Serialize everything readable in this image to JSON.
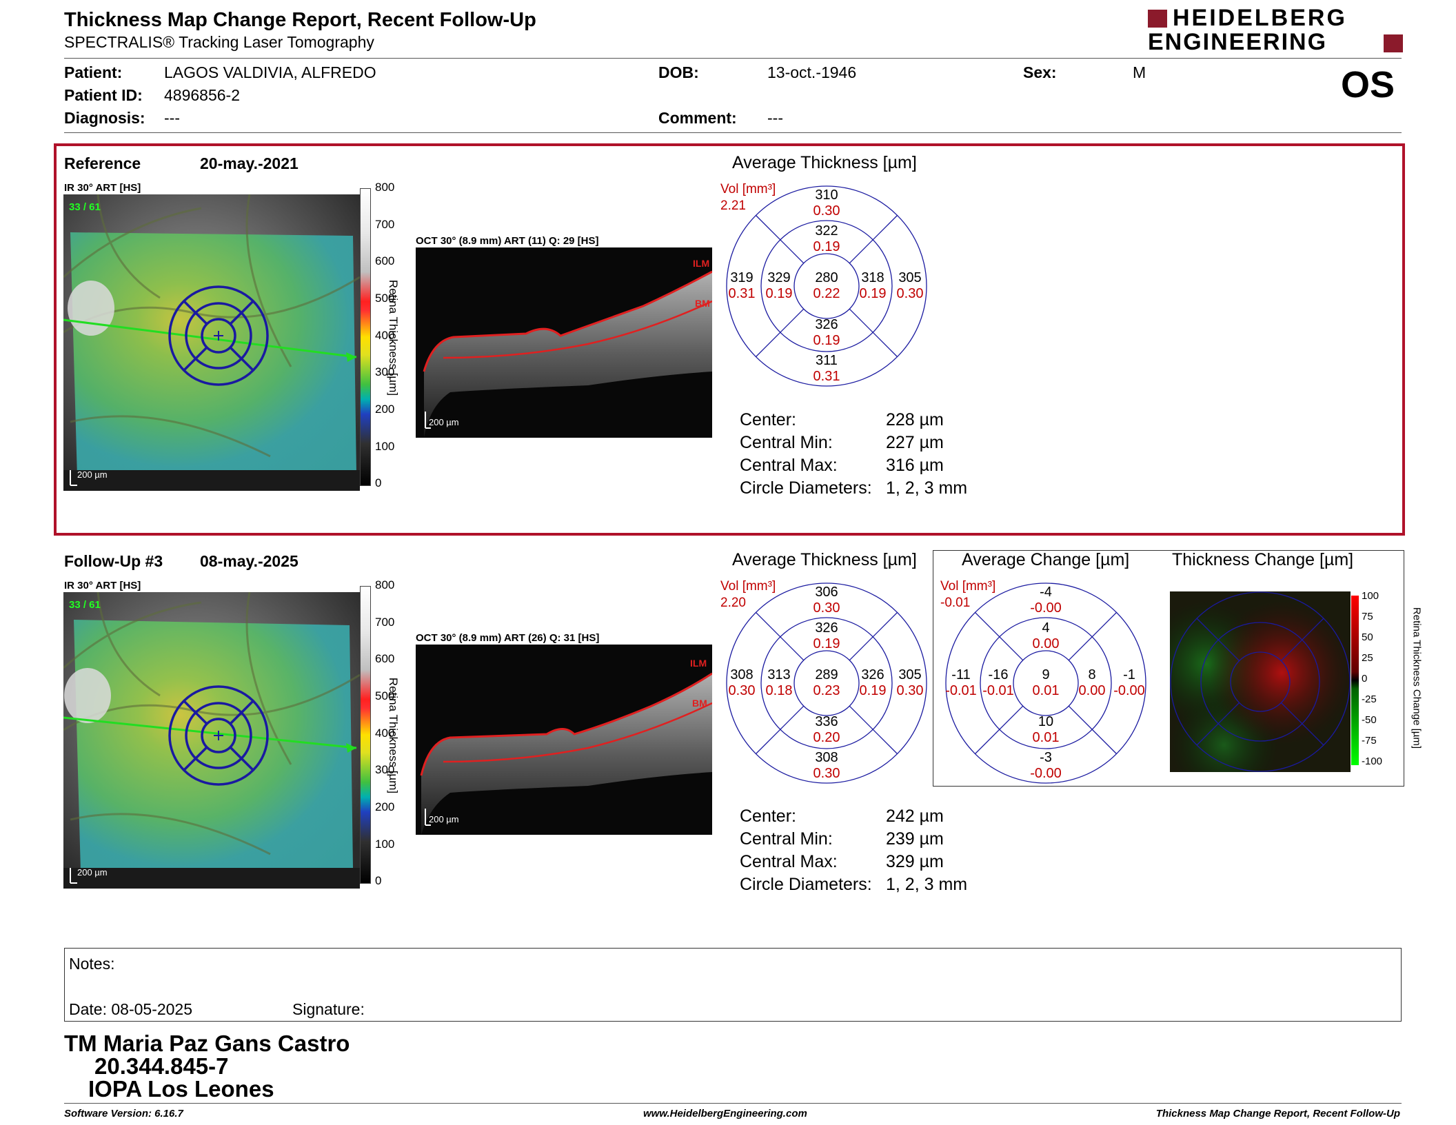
{
  "header": {
    "title": "Thickness Map Change Report, Recent Follow-Up",
    "subtitle": "SPECTRALIS® Tracking Laser Tomography",
    "logo_line1": "HEIDELBERG",
    "logo_line2": "ENGINEERING",
    "eye": "OS"
  },
  "patient": {
    "patient_label": "Patient:",
    "patient_value": "LAGOS VALDIVIA, ALFREDO",
    "id_label": "Patient ID:",
    "id_value": "4896856-2",
    "diagnosis_label": "Diagnosis:",
    "diagnosis_value": "---",
    "dob_label": "DOB:",
    "dob_value": "13-oct.-1946",
    "comment_label": "Comment:",
    "comment_value": "---",
    "sex_label": "Sex:",
    "sex_value": "M"
  },
  "reference": {
    "label": "Reference",
    "date": "20-may.-2021",
    "ir_label": "IR 30° ART [HS]",
    "ir_quality": "33 / 61",
    "oct_label": "OCT 30° (8.9 mm) ART (11) Q: 29 [HS]",
    "scale_bar": "200 µm",
    "colorbar_title": "Retina Thickness [µm]",
    "colorbar_ticks": [
      "800",
      "700",
      "600",
      "500",
      "400",
      "300",
      "200",
      "100",
      "0"
    ],
    "ilm": "ILM",
    "bm": "BM",
    "avg_title": "Average Thickness [µm]",
    "vol_label": "Vol [mm³]",
    "vol_value": "2.21",
    "sectors": {
      "c": [
        "280",
        "0.22"
      ],
      "in": [
        "322",
        "0.19"
      ],
      "is": [
        "326",
        "0.19"
      ],
      "it": [
        "329",
        "0.19"
      ],
      "inas": [
        "318",
        "0.19"
      ],
      "on": [
        "310",
        "0.30"
      ],
      "os": [
        "311",
        "0.31"
      ],
      "ot": [
        "319",
        "0.31"
      ],
      "onas": [
        "305",
        "0.30"
      ]
    },
    "stats": {
      "center_label": "Center:",
      "center_value": "228 µm",
      "min_label": "Central Min:",
      "min_value": "227 µm",
      "max_label": "Central Max:",
      "max_value": "316 µm",
      "diam_label": "Circle Diameters:",
      "diam_value": "1, 2, 3 mm"
    }
  },
  "followup": {
    "label": "Follow-Up #3",
    "date": "08-may.-2025",
    "ir_label": "IR 30° ART [HS]",
    "ir_quality": "33 / 61",
    "oct_label": "OCT 30° (8.9 mm) ART (26) Q: 31 [HS]",
    "scale_bar": "200 µm",
    "colorbar_title": "Retina Thickness [µm]",
    "colorbar_ticks": [
      "800",
      "700",
      "600",
      "500",
      "400",
      "300",
      "200",
      "100",
      "0"
    ],
    "ilm": "ILM",
    "bm": "BM",
    "avg_title": "Average Thickness [µm]",
    "vol_label": "Vol [mm³]",
    "vol_value": "2.20",
    "sectors": {
      "c": [
        "289",
        "0.23"
      ],
      "in": [
        "326",
        "0.19"
      ],
      "is": [
        "336",
        "0.20"
      ],
      "it": [
        "313",
        "0.18"
      ],
      "inas": [
        "326",
        "0.19"
      ],
      "on": [
        "306",
        "0.30"
      ],
      "os": [
        "308",
        "0.30"
      ],
      "ot": [
        "308",
        "0.30"
      ],
      "onas": [
        "305",
        "0.30"
      ]
    },
    "change_title": "Average Change [µm]",
    "change_vol_label": "Vol [mm³]",
    "change_vol_value": "-0.01",
    "change_sectors": {
      "c": [
        "9",
        "0.01"
      ],
      "in": [
        "4",
        "0.00"
      ],
      "is": [
        "10",
        "0.01"
      ],
      "it": [
        "-16",
        "-0.01"
      ],
      "inas": [
        "8",
        "0.00"
      ],
      "on": [
        "-4",
        "-0.00"
      ],
      "os": [
        "-3",
        "-0.00"
      ],
      "ot": [
        "-11",
        "-0.01"
      ],
      "onas": [
        "-1",
        "-0.00"
      ]
    },
    "thickness_change_title": "Thickness Change [µm]",
    "change_colorbar_title": "Retina Thickness Change [µm]",
    "change_ticks": [
      "100",
      "75",
      "50",
      "25",
      "0",
      "-25",
      "-50",
      "-75",
      "-100"
    ],
    "stats": {
      "center_label": "Center:",
      "center_value": "242 µm",
      "min_label": "Central Min:",
      "min_value": "239 µm",
      "max_label": "Central Max:",
      "max_value": "329 µm",
      "diam_label": "Circle Diameters:",
      "diam_value": "1, 2, 3 mm"
    }
  },
  "notes": {
    "notes_label": "Notes:",
    "date_label": "Date: 08-05-2025",
    "signature_label": "Signature:"
  },
  "signature": {
    "name": "TM Maria Paz Gans Castro",
    "id": "20.344.845-7",
    "place": "IOPA Los Leones"
  },
  "footer": {
    "version": "Software Version: 6.16.7",
    "website": "www.HeidelbergEngineering.com",
    "report": "Thickness Map Change Report, Recent Follow-Up"
  },
  "colors": {
    "accent_red": "#b0122a",
    "grid_blue": "#1a1aa0",
    "value_red": "#c00000"
  }
}
